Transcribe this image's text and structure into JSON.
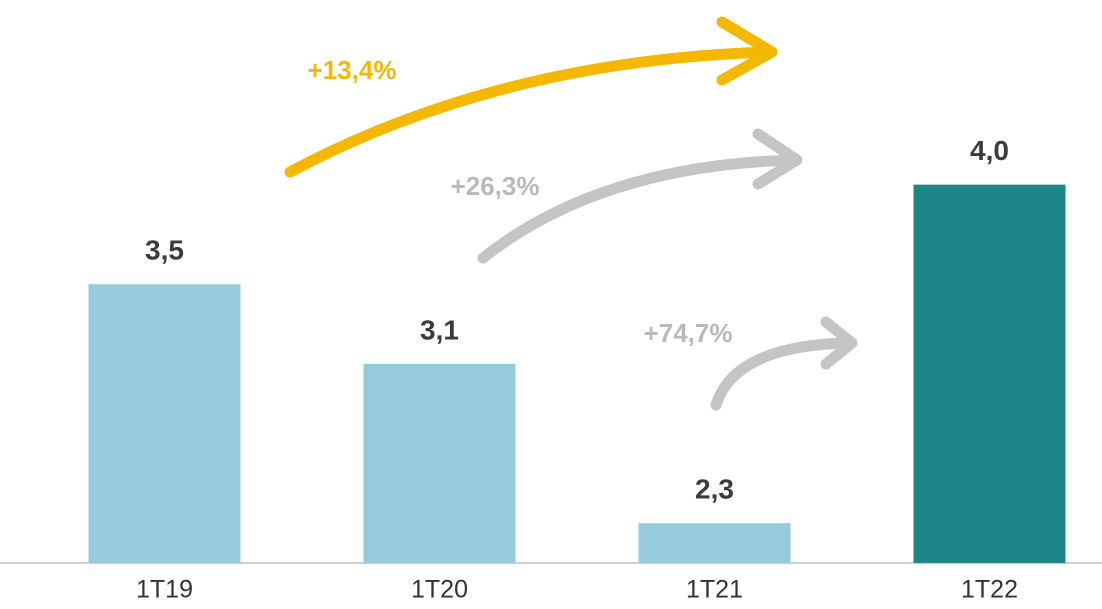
{
  "chart_data": {
    "type": "bar",
    "categories": [
      "1T19",
      "1T20",
      "1T21",
      "1T22"
    ],
    "values": [
      3.5,
      3.1,
      2.3,
      4.0
    ],
    "value_labels": [
      "3,5",
      "3,1",
      "2,3",
      "4,0"
    ],
    "colors": [
      "#96cbdc",
      "#96cbdc",
      "#96cbdc",
      "#1c8689"
    ],
    "ylim": [
      2.1,
      4.4
    ],
    "annotations": [
      {
        "text": "+13,4%",
        "color": "#f5b800"
      },
      {
        "text": "+26,3%",
        "color": "#b9b9b9"
      },
      {
        "text": "+74,7%",
        "color": "#b9b9b9"
      }
    ]
  }
}
